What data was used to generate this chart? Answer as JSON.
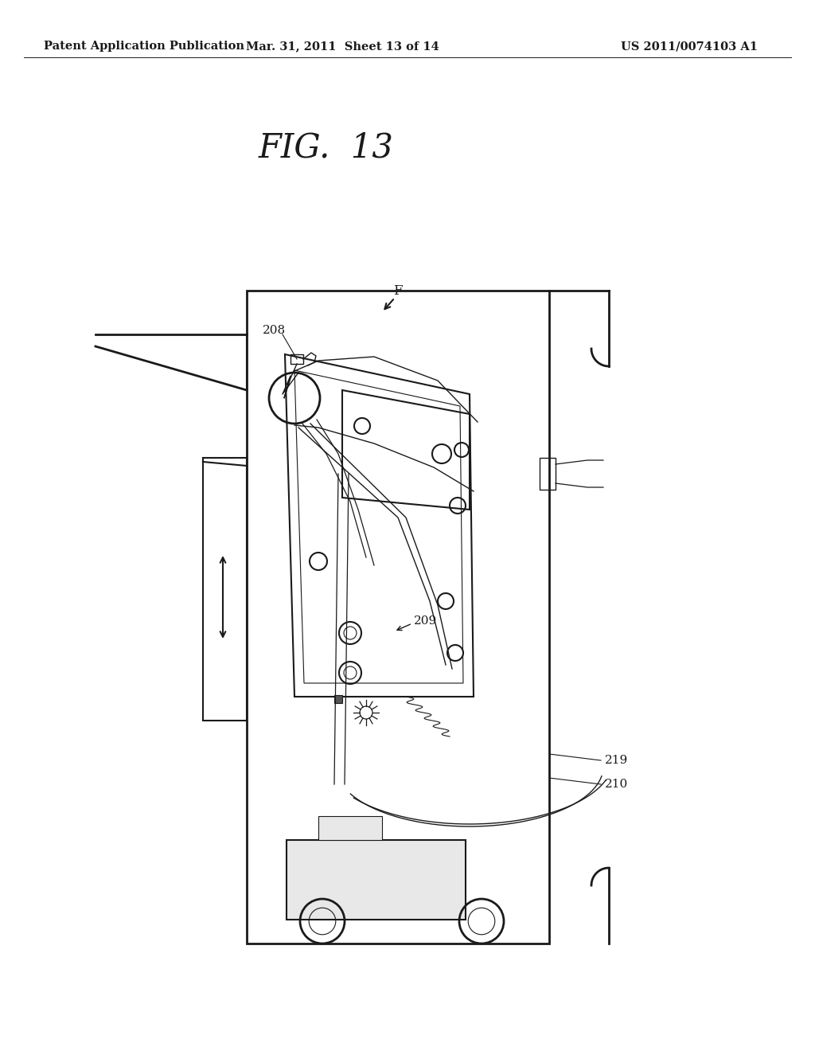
{
  "header_left": "Patent Application Publication",
  "header_center": "Mar. 31, 2011  Sheet 13 of 14",
  "header_right": "US 2011/0074103 A1",
  "fig_title": "FIG.  13",
  "label_F": "F",
  "label_208": "208",
  "label_209": "209",
  "label_219": "219",
  "label_210": "210",
  "bg_color": "#ffffff",
  "line_color": "#1a1a1a",
  "header_fontsize": 10.5,
  "title_fontsize": 30
}
